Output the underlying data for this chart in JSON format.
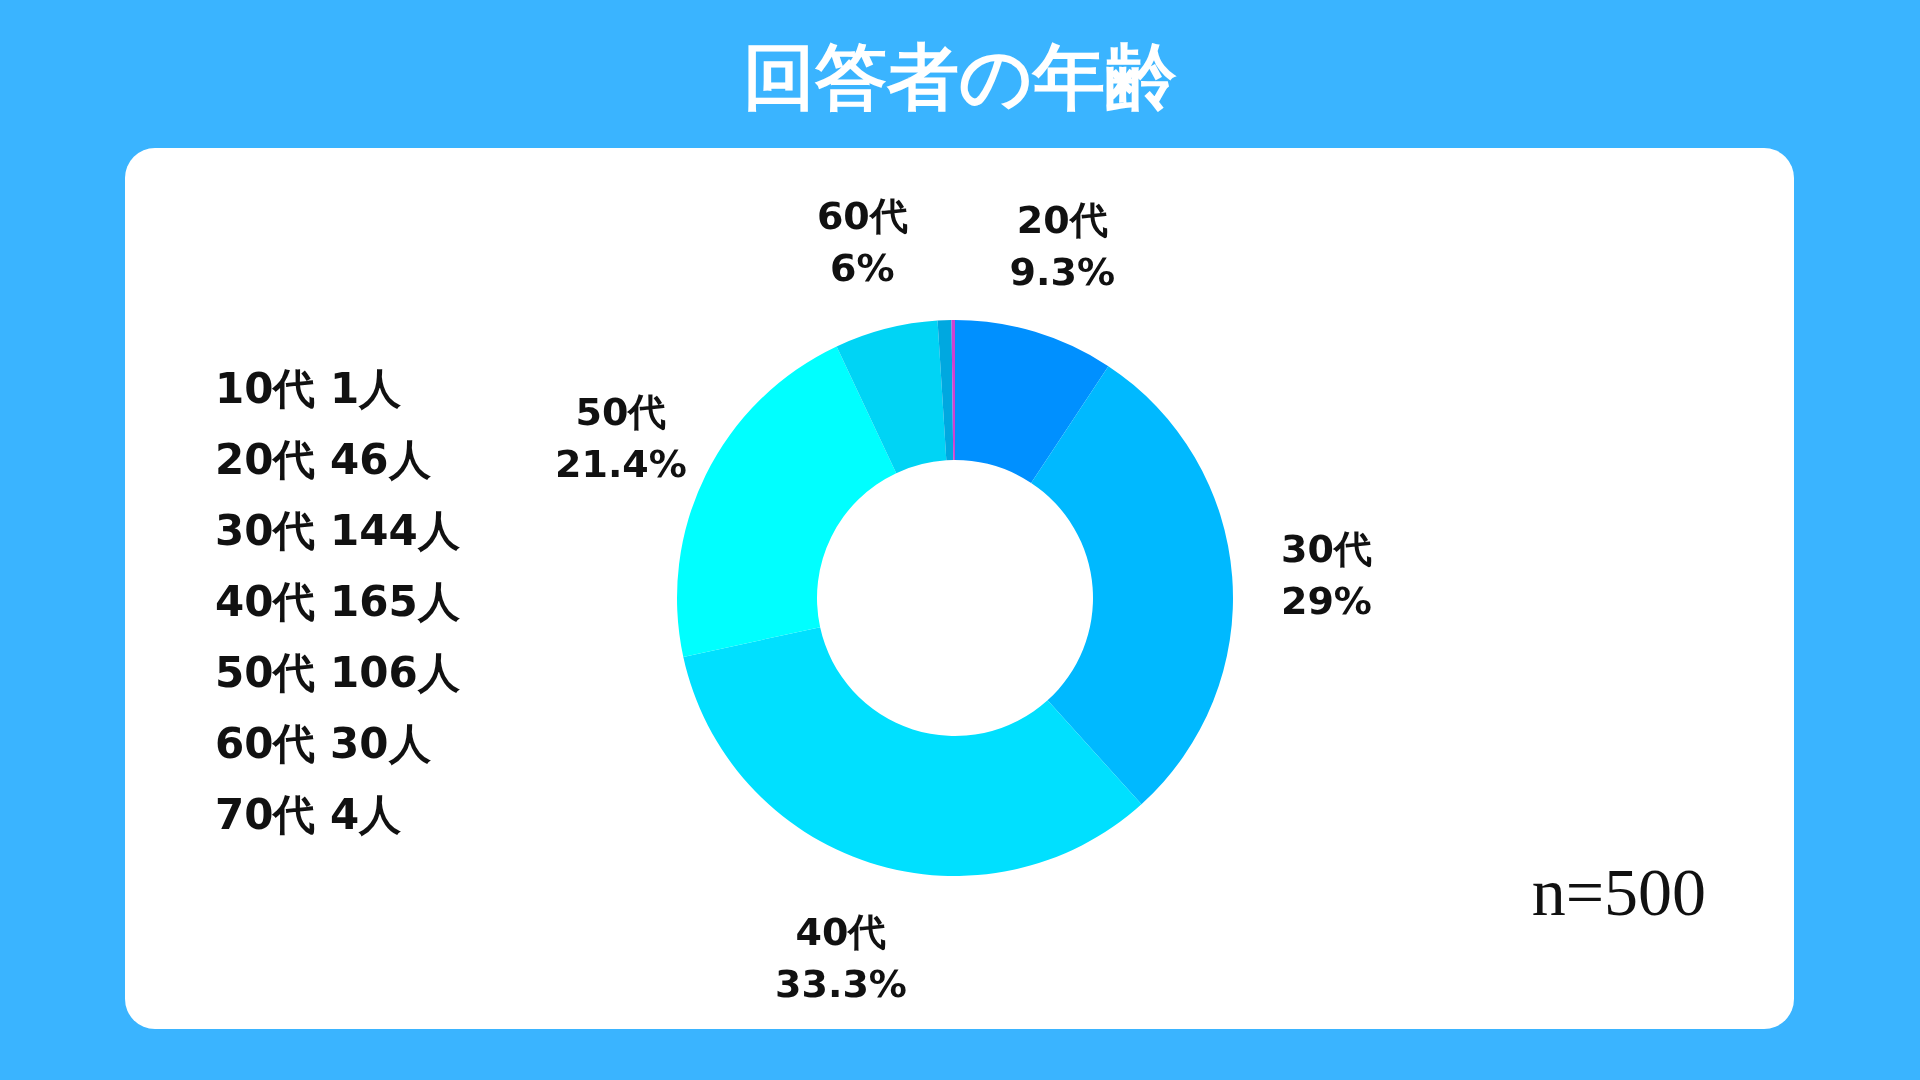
{
  "chart_data": {
    "type": "donut",
    "title": "回答者の年齢",
    "categories": [
      "20代",
      "30代",
      "40代",
      "50代",
      "60代",
      null,
      null
    ],
    "values": [
      9.3,
      29,
      33.3,
      21.4,
      6,
      0.8,
      0.2
    ],
    "value_labels": [
      "9.3%",
      "29%",
      "33.3%",
      "21.4%",
      "6%",
      null,
      null
    ],
    "colors": [
      "#0090ff",
      "#00b9ff",
      "#00e0ff",
      "#00ffff",
      "#00d4f5",
      "#00a8e0",
      "#d040d0"
    ],
    "legend": false,
    "annotations": [
      "10代 1人",
      "20代 46人",
      "30代 144人",
      "40代 165人",
      "50代 106人",
      "60代 30人",
      "70代 4人",
      "n=500"
    ]
  }
}
